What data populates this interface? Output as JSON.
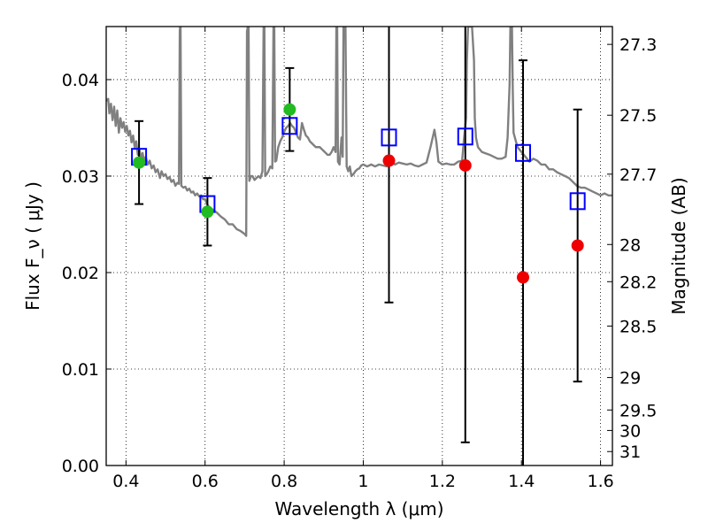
{
  "chart_data": {
    "type": "scatter",
    "title": "",
    "xlabel": "Wavelength  λ (μm)",
    "ylabel": "Flux  F_ν  ( μJy )",
    "y2label": "Magnitude (AB)",
    "xlim": [
      0.35,
      1.63
    ],
    "ylim": [
      0.0,
      0.0455
    ],
    "grid": true,
    "legend": "none",
    "x_ticks": [
      {
        "value": 0.4,
        "label": "0.4"
      },
      {
        "value": 0.6,
        "label": "0.6"
      },
      {
        "value": 0.8,
        "label": "0.8"
      },
      {
        "value": 1.0,
        "label": "1"
      },
      {
        "value": 1.2,
        "label": "1.2"
      },
      {
        "value": 1.4,
        "label": "1.4"
      },
      {
        "value": 1.6,
        "label": "1.6"
      }
    ],
    "y_ticks": [
      {
        "value": 0.0,
        "label": "0.00"
      },
      {
        "value": 0.01,
        "label": "0.01"
      },
      {
        "value": 0.02,
        "label": "0.02"
      },
      {
        "value": 0.03,
        "label": "0.03"
      },
      {
        "value": 0.04,
        "label": "0.04"
      }
    ],
    "y2_ticks": [
      {
        "mag": 27.3,
        "label": "27.3"
      },
      {
        "mag": 27.5,
        "label": "27.5"
      },
      {
        "mag": 27.7,
        "label": "27.7"
      },
      {
        "mag": 28.0,
        "label": "28"
      },
      {
        "mag": 28.2,
        "label": "28.2"
      },
      {
        "mag": 28.5,
        "label": "28.5"
      },
      {
        "mag": 29.0,
        "label": "29"
      },
      {
        "mag": 29.5,
        "label": "29.5"
      },
      {
        "mag": 30.0,
        "label": "30"
      },
      {
        "mag": 31.0,
        "label": "31"
      }
    ],
    "spectrum": {
      "color": "#808080",
      "points": [
        [
          0.35,
          0.0378
        ],
        [
          0.355,
          0.038
        ],
        [
          0.358,
          0.0365
        ],
        [
          0.362,
          0.0375
        ],
        [
          0.366,
          0.0358
        ],
        [
          0.37,
          0.0372
        ],
        [
          0.374,
          0.0352
        ],
        [
          0.378,
          0.0368
        ],
        [
          0.382,
          0.0345
        ],
        [
          0.386,
          0.036
        ],
        [
          0.39,
          0.035
        ],
        [
          0.394,
          0.0356
        ],
        [
          0.398,
          0.0346
        ],
        [
          0.402,
          0.0352
        ],
        [
          0.406,
          0.0342
        ],
        [
          0.41,
          0.0347
        ],
        [
          0.414,
          0.0335
        ],
        [
          0.418,
          0.0342
        ],
        [
          0.422,
          0.033
        ],
        [
          0.426,
          0.0336
        ],
        [
          0.43,
          0.0322
        ],
        [
          0.434,
          0.0328
        ],
        [
          0.438,
          0.0318
        ],
        [
          0.442,
          0.0324
        ],
        [
          0.446,
          0.0315
        ],
        [
          0.45,
          0.032
        ],
        [
          0.455,
          0.0312
        ],
        [
          0.46,
          0.0316
        ],
        [
          0.465,
          0.0308
        ],
        [
          0.47,
          0.0311
        ],
        [
          0.475,
          0.0304
        ],
        [
          0.48,
          0.0307
        ],
        [
          0.486,
          0.0298
        ],
        [
          0.49,
          0.0305
        ],
        [
          0.495,
          0.03
        ],
        [
          0.5,
          0.0302
        ],
        [
          0.505,
          0.0297
        ],
        [
          0.51,
          0.0299
        ],
        [
          0.515,
          0.0294
        ],
        [
          0.52,
          0.0296
        ],
        [
          0.525,
          0.029
        ],
        [
          0.53,
          0.0293
        ],
        [
          0.534,
          0.0292
        ],
        [
          0.536,
          0.045
        ],
        [
          0.537,
          0.0455
        ],
        [
          0.538,
          0.0455
        ],
        [
          0.54,
          0.029
        ],
        [
          0.545,
          0.0288
        ],
        [
          0.55,
          0.0289
        ],
        [
          0.555,
          0.0285
        ],
        [
          0.56,
          0.0287
        ],
        [
          0.565,
          0.0283
        ],
        [
          0.57,
          0.0284
        ],
        [
          0.575,
          0.028
        ],
        [
          0.58,
          0.0282
        ],
        [
          0.585,
          0.0279
        ],
        [
          0.59,
          0.028
        ],
        [
          0.595,
          0.0276
        ],
        [
          0.6,
          0.0276
        ],
        [
          0.605,
          0.0271
        ],
        [
          0.61,
          0.0268
        ],
        [
          0.62,
          0.0265
        ],
        [
          0.63,
          0.0262
        ],
        [
          0.64,
          0.0258
        ],
        [
          0.65,
          0.0255
        ],
        [
          0.66,
          0.025
        ],
        [
          0.67,
          0.025
        ],
        [
          0.68,
          0.0245
        ],
        [
          0.69,
          0.0243
        ],
        [
          0.7,
          0.024
        ],
        [
          0.704,
          0.0238
        ],
        [
          0.706,
          0.045
        ],
        [
          0.708,
          0.0455
        ],
        [
          0.71,
          0.0455
        ],
        [
          0.712,
          0.0295
        ],
        [
          0.716,
          0.03
        ],
        [
          0.72,
          0.03
        ],
        [
          0.725,
          0.0296
        ],
        [
          0.73,
          0.0298
        ],
        [
          0.735,
          0.03
        ],
        [
          0.74,
          0.0298
        ],
        [
          0.745,
          0.0305
        ],
        [
          0.748,
          0.0455
        ],
        [
          0.75,
          0.0455
        ],
        [
          0.752,
          0.03
        ],
        [
          0.756,
          0.0302
        ],
        [
          0.76,
          0.0305
        ],
        [
          0.765,
          0.031
        ],
        [
          0.77,
          0.0308
        ],
        [
          0.773,
          0.0455
        ],
        [
          0.775,
          0.0455
        ],
        [
          0.777,
          0.0315
        ],
        [
          0.78,
          0.0316
        ],
        [
          0.785,
          0.033
        ],
        [
          0.79,
          0.0336
        ],
        [
          0.795,
          0.034
        ],
        [
          0.8,
          0.0346
        ],
        [
          0.805,
          0.035
        ],
        [
          0.81,
          0.0352
        ],
        [
          0.815,
          0.0355
        ],
        [
          0.82,
          0.0352
        ],
        [
          0.825,
          0.035
        ],
        [
          0.83,
          0.0345
        ],
        [
          0.835,
          0.034
        ],
        [
          0.84,
          0.0338
        ],
        [
          0.845,
          0.0355
        ],
        [
          0.85,
          0.0348
        ],
        [
          0.855,
          0.0342
        ],
        [
          0.86,
          0.034
        ],
        [
          0.865,
          0.0336
        ],
        [
          0.87,
          0.0334
        ],
        [
          0.875,
          0.0332
        ],
        [
          0.88,
          0.033
        ],
        [
          0.885,
          0.033
        ],
        [
          0.89,
          0.033
        ],
        [
          0.895,
          0.0328
        ],
        [
          0.9,
          0.0326
        ],
        [
          0.905,
          0.0324
        ],
        [
          0.91,
          0.0322
        ],
        [
          0.915,
          0.0322
        ],
        [
          0.92,
          0.0325
        ],
        [
          0.925,
          0.033
        ],
        [
          0.93,
          0.0325
        ],
        [
          0.932,
          0.0455
        ],
        [
          0.934,
          0.0455
        ],
        [
          0.936,
          0.0315
        ],
        [
          0.94,
          0.0312
        ],
        [
          0.945,
          0.034
        ],
        [
          0.948,
          0.032
        ],
        [
          0.95,
          0.0455
        ],
        [
          0.953,
          0.0455
        ],
        [
          0.955,
          0.0455
        ],
        [
          0.958,
          0.031
        ],
        [
          0.962,
          0.0305
        ],
        [
          0.966,
          0.031
        ],
        [
          0.97,
          0.03
        ],
        [
          0.975,
          0.0302
        ],
        [
          0.98,
          0.0305
        ],
        [
          0.985,
          0.0307
        ],
        [
          0.99,
          0.0308
        ],
        [
          0.995,
          0.0311
        ],
        [
          1.0,
          0.0312
        ],
        [
          1.01,
          0.031
        ],
        [
          1.02,
          0.0312
        ],
        [
          1.03,
          0.031
        ],
        [
          1.04,
          0.0312
        ],
        [
          1.05,
          0.0311
        ],
        [
          1.06,
          0.031
        ],
        [
          1.07,
          0.0316
        ],
        [
          1.08,
          0.0312
        ],
        [
          1.09,
          0.0314
        ],
        [
          1.1,
          0.0313
        ],
        [
          1.11,
          0.0312
        ],
        [
          1.12,
          0.0313
        ],
        [
          1.13,
          0.0311
        ],
        [
          1.14,
          0.031
        ],
        [
          1.15,
          0.0312
        ],
        [
          1.16,
          0.0314
        ],
        [
          1.17,
          0.033
        ],
        [
          1.18,
          0.0348
        ],
        [
          1.185,
          0.0335
        ],
        [
          1.19,
          0.0315
        ],
        [
          1.2,
          0.0312
        ],
        [
          1.21,
          0.0313
        ],
        [
          1.22,
          0.0312
        ],
        [
          1.23,
          0.0312
        ],
        [
          1.24,
          0.0315
        ],
        [
          1.25,
          0.0316
        ],
        [
          1.255,
          0.034
        ],
        [
          1.26,
          0.036
        ],
        [
          1.262,
          0.042
        ],
        [
          1.265,
          0.0455
        ],
        [
          1.27,
          0.0455
        ],
        [
          1.275,
          0.0455
        ],
        [
          1.28,
          0.042
        ],
        [
          1.282,
          0.036
        ],
        [
          1.285,
          0.034
        ],
        [
          1.29,
          0.033
        ],
        [
          1.3,
          0.0325
        ],
        [
          1.32,
          0.0322
        ],
        [
          1.33,
          0.032
        ],
        [
          1.34,
          0.0318
        ],
        [
          1.35,
          0.0318
        ],
        [
          1.36,
          0.032
        ],
        [
          1.365,
          0.034
        ],
        [
          1.37,
          0.0395
        ],
        [
          1.372,
          0.0455
        ],
        [
          1.376,
          0.0455
        ],
        [
          1.378,
          0.039
        ],
        [
          1.38,
          0.0345
        ],
        [
          1.39,
          0.033
        ],
        [
          1.4,
          0.0325
        ],
        [
          1.41,
          0.032
        ],
        [
          1.42,
          0.0315
        ],
        [
          1.43,
          0.0318
        ],
        [
          1.44,
          0.0316
        ],
        [
          1.45,
          0.0312
        ],
        [
          1.46,
          0.0312
        ],
        [
          1.47,
          0.0307
        ],
        [
          1.48,
          0.0307
        ],
        [
          1.49,
          0.0304
        ],
        [
          1.5,
          0.0302
        ],
        [
          1.51,
          0.03
        ],
        [
          1.52,
          0.0298
        ],
        [
          1.53,
          0.0294
        ],
        [
          1.54,
          0.029
        ],
        [
          1.55,
          0.0288
        ],
        [
          1.56,
          0.0288
        ],
        [
          1.57,
          0.0286
        ],
        [
          1.58,
          0.0284
        ],
        [
          1.59,
          0.0282
        ],
        [
          1.6,
          0.028
        ],
        [
          1.61,
          0.0282
        ],
        [
          1.62,
          0.028
        ],
        [
          1.63,
          0.028
        ]
      ]
    },
    "series": [
      {
        "marker": "open-square",
        "color": "#0000ff",
        "points": [
          {
            "x": 0.433,
            "y": 0.032
          },
          {
            "x": 0.606,
            "y": 0.0271
          },
          {
            "x": 0.814,
            "y": 0.0352
          },
          {
            "x": 1.065,
            "y": 0.034
          },
          {
            "x": 1.258,
            "y": 0.0341
          },
          {
            "x": 1.404,
            "y": 0.0324
          },
          {
            "x": 1.542,
            "y": 0.0274
          }
        ]
      },
      {
        "marker": "filled-circle",
        "color": "#22bb22",
        "points": [
          {
            "x": 0.433,
            "y": 0.0314,
            "err": 0.0043
          },
          {
            "x": 0.606,
            "y": 0.0263,
            "err": 0.0035
          },
          {
            "x": 0.814,
            "y": 0.0369,
            "err": 0.0043
          }
        ]
      },
      {
        "marker": "filled-circle",
        "color": "#ee0000",
        "points": [
          {
            "x": 1.065,
            "y": 0.0316,
            "err": 0.0147
          },
          {
            "x": 1.258,
            "y": 0.0311,
            "err": 0.0287
          },
          {
            "x": 1.404,
            "y": 0.0195,
            "err": 0.0225
          },
          {
            "x": 1.542,
            "y": 0.0228,
            "err": 0.0141
          }
        ]
      }
    ]
  }
}
